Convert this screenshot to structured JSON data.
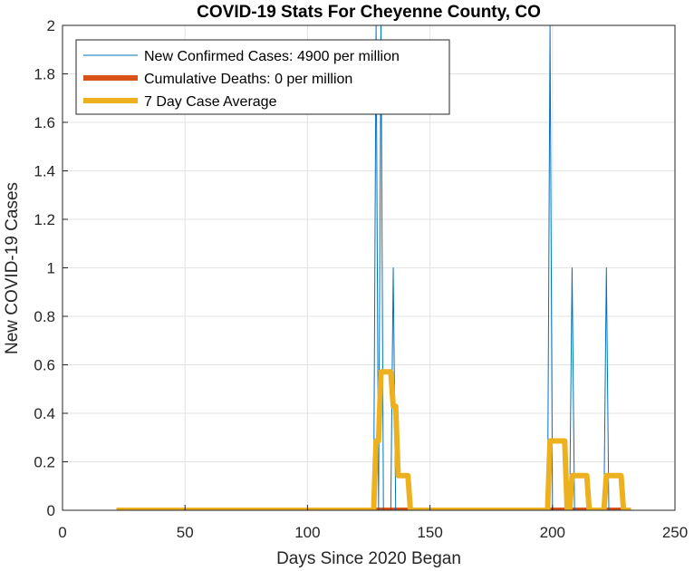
{
  "chart_data": {
    "type": "line",
    "title": "COVID-19 Stats For Cheyenne County, CO",
    "xlabel": "Days Since 2020 Began",
    "ylabel": "New COVID-19 Cases",
    "xlim": [
      0,
      250
    ],
    "ylim": [
      0,
      2
    ],
    "xticks": [
      "0",
      "50",
      "100",
      "150",
      "200",
      "250"
    ],
    "yticks": [
      "0",
      "0.2",
      "0.4",
      "0.6",
      "0.8",
      "1",
      "1.2",
      "1.4",
      "1.6",
      "1.8",
      "2"
    ],
    "grid": true,
    "legend_position": "top-left",
    "series": [
      {
        "name": "New Confirmed Cases: 4900 per million",
        "color": "#0072BD",
        "line_width": "thin",
        "points": [
          [
            22,
            0
          ],
          [
            127,
            0
          ],
          [
            128,
            2
          ],
          [
            129,
            0
          ],
          [
            130,
            2
          ],
          [
            131,
            0
          ],
          [
            134,
            0
          ],
          [
            135,
            1
          ],
          [
            136,
            0
          ],
          [
            198,
            0
          ],
          [
            199,
            2
          ],
          [
            200,
            0
          ],
          [
            207,
            0
          ],
          [
            208,
            1
          ],
          [
            209,
            0
          ],
          [
            221,
            0
          ],
          [
            222,
            1
          ],
          [
            223,
            0
          ],
          [
            232,
            0
          ]
        ]
      },
      {
        "name": "Cumulative Deaths: 0 per million",
        "color": "#D95319",
        "line_width": "thick",
        "points": [
          [
            22,
            0
          ],
          [
            232,
            0
          ]
        ]
      },
      {
        "name": "7 Day Case Average",
        "color": "#EDB120",
        "line_width": "thick",
        "points": [
          [
            22,
            0
          ],
          [
            127,
            0
          ],
          [
            128,
            0.286
          ],
          [
            129,
            0.286
          ],
          [
            130,
            0.571
          ],
          [
            134,
            0.571
          ],
          [
            135,
            0.429
          ],
          [
            136,
            0.429
          ],
          [
            137,
            0.143
          ],
          [
            141,
            0.143
          ],
          [
            142,
            0
          ],
          [
            198,
            0
          ],
          [
            199,
            0.286
          ],
          [
            205,
            0.286
          ],
          [
            206,
            0
          ],
          [
            207,
            0
          ],
          [
            208,
            0.143
          ],
          [
            214,
            0.143
          ],
          [
            215,
            0
          ],
          [
            221,
            0
          ],
          [
            222,
            0.143
          ],
          [
            228,
            0.143
          ],
          [
            229,
            0
          ],
          [
            232,
            0
          ]
        ]
      }
    ]
  }
}
